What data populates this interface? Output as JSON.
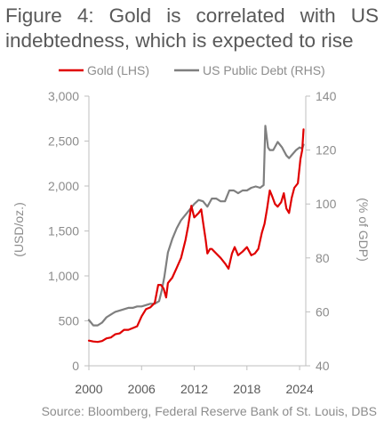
{
  "title": "Figure 4: Gold is correlated with US indebtedness, which is expected to rise",
  "source": "Source: Bloomberg, Federal Reserve Bank of St. Louis, DBS",
  "colors": {
    "gold": "#e00000",
    "debt": "#7f7f7f",
    "text": "#595959",
    "muted": "#8c8c8c",
    "axis": "#bfbfbf"
  },
  "chart_data": {
    "type": "line",
    "title": "Figure 4: Gold is correlated with US indebtedness, which is expected to rise",
    "xlabel": "",
    "ylabel": "(USD/oz.)",
    "y2label": "(% of GDP)",
    "x_ticks": [
      "2000",
      "2006",
      "2012",
      "2018",
      "2024"
    ],
    "x_tick_values": [
      2000,
      2006,
      2012,
      2018,
      2024
    ],
    "xlim": [
      2000,
      2024.5
    ],
    "ylim": [
      0,
      3000
    ],
    "y_ticks": [
      "3,000",
      "2,500",
      "2,000",
      "1,500",
      "1,000",
      "500",
      "0"
    ],
    "y_tick_values": [
      3000,
      2500,
      2000,
      1500,
      1000,
      500,
      0
    ],
    "y2lim": [
      40,
      140
    ],
    "y2_ticks": [
      "140",
      "120",
      "100",
      "80",
      "60",
      "40"
    ],
    "y2_tick_values": [
      140,
      120,
      100,
      80,
      60,
      40
    ],
    "legend_position": "top",
    "grid": false,
    "series": [
      {
        "name": "Gold (LHS)",
        "axis": "left",
        "color": "#e00000",
        "x": [
          2000,
          2000.5,
          2001,
          2001.5,
          2002,
          2002.5,
          2003,
          2003.5,
          2004,
          2004.5,
          2005,
          2005.5,
          2006,
          2006.5,
          2007,
          2007.5,
          2007.9,
          2008.2,
          2008.5,
          2008.8,
          2009,
          2009.5,
          2010,
          2010.5,
          2011,
          2011.3,
          2011.67,
          2012,
          2012.5,
          2012.8,
          2013,
          2013.3,
          2013.5,
          2013.8,
          2014,
          2014.5,
          2015,
          2015.5,
          2015.9,
          2016.3,
          2016.6,
          2017,
          2017.5,
          2018,
          2018.5,
          2018.9,
          2019.3,
          2019.7,
          2020,
          2020.3,
          2020.6,
          2020.9,
          2021.2,
          2021.5,
          2021.9,
          2022.2,
          2022.5,
          2022.8,
          2023.1,
          2023.4,
          2023.8,
          2024.1,
          2024.3,
          2024.45
        ],
        "y": [
          280,
          270,
          265,
          275,
          305,
          315,
          350,
          360,
          400,
          400,
          420,
          440,
          550,
          630,
          650,
          700,
          900,
          900,
          860,
          760,
          920,
          980,
          1090,
          1200,
          1400,
          1550,
          1780,
          1650,
          1700,
          1740,
          1600,
          1400,
          1250,
          1300,
          1300,
          1250,
          1200,
          1140,
          1080,
          1250,
          1320,
          1230,
          1270,
          1320,
          1230,
          1250,
          1300,
          1480,
          1580,
          1750,
          1950,
          1880,
          1800,
          1770,
          1820,
          1920,
          1750,
          1700,
          1870,
          1980,
          2030,
          2300,
          2400,
          2630
        ]
      },
      {
        "name": "US Public Debt (RHS)",
        "axis": "right",
        "color": "#7f7f7f",
        "x": [
          2000,
          2000.5,
          2001,
          2001.5,
          2002,
          2002.5,
          2003,
          2003.5,
          2004,
          2004.5,
          2005,
          2005.5,
          2006,
          2006.5,
          2007,
          2007.5,
          2008,
          2008.3,
          2008.6,
          2009,
          2009.5,
          2010,
          2010.5,
          2011,
          2011.5,
          2012,
          2012.5,
          2013,
          2013.5,
          2014,
          2014.5,
          2015,
          2015.5,
          2016,
          2016.5,
          2017,
          2017.5,
          2018,
          2018.5,
          2019,
          2019.5,
          2019.9,
          2020.1,
          2020.25,
          2020.4,
          2020.6,
          2021,
          2021.5,
          2022,
          2022.5,
          2022.8,
          2023.2,
          2023.6,
          2024,
          2024.3,
          2024.45
        ],
        "y": [
          57,
          55,
          55,
          56,
          58,
          59,
          60,
          60.5,
          61,
          61.5,
          61.5,
          62,
          62,
          62.5,
          63,
          63,
          64,
          68,
          73,
          82,
          87,
          91,
          94,
          96,
          98,
          100,
          101.5,
          101,
          99,
          102,
          102,
          101,
          101,
          105,
          105,
          104,
          105,
          105,
          106,
          106.5,
          106,
          107,
          129,
          125,
          121,
          120,
          120,
          123,
          121,
          118,
          117,
          118.5,
          120,
          121,
          120.5,
          122
        ]
      }
    ]
  }
}
